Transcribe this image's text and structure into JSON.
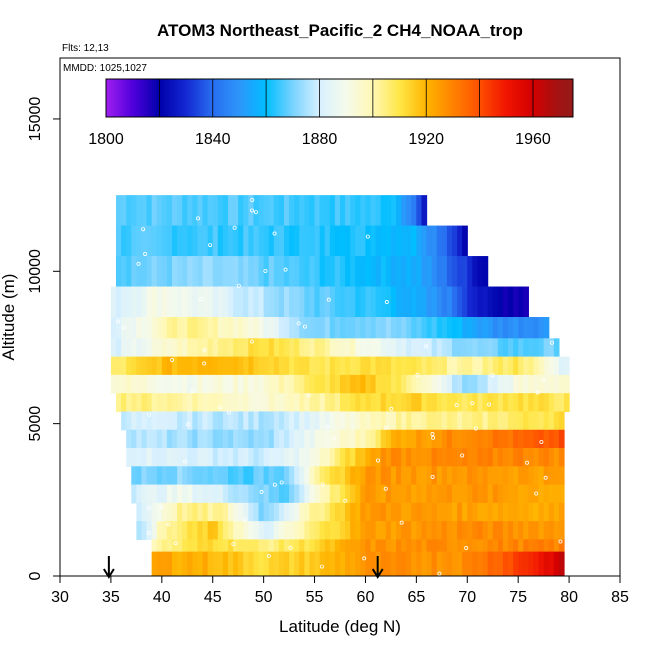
{
  "chart_data": {
    "type": "heatmap",
    "title": "ATOM3 Northeast_Pacific_2 CH4_NOAA_trop",
    "flights_note": "Flts: 12,13",
    "dates_note": "MMDD: 1025,1027",
    "xlabel": "Latitude (deg N)",
    "ylabel": "Altitude (m)",
    "xlim": [
      30,
      85
    ],
    "ylim": [
      0,
      17000
    ],
    "x_ticks": [
      "30",
      "35",
      "40",
      "45",
      "50",
      "55",
      "60",
      "65",
      "70",
      "75",
      "80",
      "85"
    ],
    "y_ticks": [
      "0",
      "5000",
      "10000",
      "15000"
    ],
    "colorbar": {
      "range": [
        1800,
        1975
      ],
      "tick_values": [
        1800,
        1840,
        1880,
        1920,
        1960
      ],
      "tick_labels": [
        "1800",
        "1840",
        "1880",
        "1920",
        "1960"
      ]
    },
    "markers_latitude": [
      34.8,
      61.2
    ],
    "grid": false,
    "legend": "colorbar top-inside",
    "layers": [
      {
        "alt_range": [
          11500,
          12500
        ],
        "lat_range": [
          35.5,
          66
        ],
        "ch4_profile": [
          [
            35.5,
            1868
          ],
          [
            50,
            1866
          ],
          [
            60,
            1864
          ],
          [
            63,
            1862
          ],
          [
            65,
            1840
          ],
          [
            66,
            1818
          ]
        ]
      },
      {
        "alt_range": [
          10500,
          11500
        ],
        "lat_range": [
          35.5,
          70
        ],
        "ch4_profile": [
          [
            35.5,
            1866
          ],
          [
            50,
            1864
          ],
          [
            60,
            1862
          ],
          [
            65,
            1858
          ],
          [
            68,
            1840
          ],
          [
            70,
            1822
          ]
        ]
      },
      {
        "alt_range": [
          9500,
          10500
        ],
        "lat_range": [
          35.5,
          72
        ],
        "ch4_profile": [
          [
            35.5,
            1868
          ],
          [
            45,
            1872
          ],
          [
            55,
            1864
          ],
          [
            65,
            1856
          ],
          [
            69,
            1836
          ],
          [
            72,
            1820
          ]
        ]
      },
      {
        "alt_range": [
          8500,
          9500
        ],
        "lat_range": [
          35,
          76
        ],
        "ch4_profile": [
          [
            35,
            1880
          ],
          [
            40,
            1892
          ],
          [
            45,
            1884
          ],
          [
            55,
            1868
          ],
          [
            62,
            1862
          ],
          [
            68,
            1846
          ],
          [
            72,
            1822
          ],
          [
            76,
            1818
          ]
        ]
      },
      {
        "alt_range": [
          7800,
          8500
        ],
        "lat_range": [
          35,
          78
        ],
        "ch4_profile": [
          [
            35,
            1882
          ],
          [
            42,
            1904
          ],
          [
            48,
            1896
          ],
          [
            55,
            1870
          ],
          [
            62,
            1872
          ],
          [
            68,
            1862
          ],
          [
            73,
            1848
          ],
          [
            78,
            1850
          ]
        ]
      },
      {
        "alt_range": [
          7200,
          7800
        ],
        "lat_range": [
          35,
          79
        ],
        "ch4_profile": [
          [
            35,
            1880
          ],
          [
            43,
            1900
          ],
          [
            50,
            1912
          ],
          [
            55,
            1904
          ],
          [
            60,
            1892
          ],
          [
            65,
            1880
          ],
          [
            70,
            1872
          ],
          [
            75,
            1866
          ],
          [
            79,
            1870
          ]
        ]
      },
      {
        "alt_range": [
          6600,
          7200
        ],
        "lat_range": [
          35,
          80
        ],
        "ch4_profile": [
          [
            35,
            1904
          ],
          [
            40,
            1918
          ],
          [
            45,
            1922
          ],
          [
            50,
            1916
          ],
          [
            55,
            1908
          ],
          [
            60,
            1912
          ],
          [
            65,
            1908
          ],
          [
            70,
            1900
          ],
          [
            75,
            1910
          ],
          [
            80,
            1880
          ]
        ]
      },
      {
        "alt_range": [
          6000,
          6600
        ],
        "lat_range": [
          35,
          80
        ],
        "ch4_profile": [
          [
            35,
            1896
          ],
          [
            42,
            1890
          ],
          [
            50,
            1894
          ],
          [
            55,
            1908
          ],
          [
            60,
            1918
          ],
          [
            65,
            1902
          ],
          [
            70,
            1870
          ],
          [
            75,
            1892
          ],
          [
            80,
            1896
          ]
        ]
      },
      {
        "alt_range": [
          5400,
          6000
        ],
        "lat_range": [
          35.5,
          80
        ],
        "ch4_profile": [
          [
            35.5,
            1906
          ],
          [
            42,
            1902
          ],
          [
            50,
            1894
          ],
          [
            55,
            1900
          ],
          [
            60,
            1912
          ],
          [
            65,
            1914
          ],
          [
            70,
            1908
          ],
          [
            75,
            1912
          ],
          [
            80,
            1908
          ]
        ]
      },
      {
        "alt_range": [
          4800,
          5400
        ],
        "lat_range": [
          36,
          79.5
        ],
        "ch4_profile": [
          [
            36,
            1880
          ],
          [
            42,
            1878
          ],
          [
            50,
            1876
          ],
          [
            55,
            1884
          ],
          [
            60,
            1896
          ],
          [
            65,
            1904
          ],
          [
            70,
            1902
          ],
          [
            75,
            1908
          ],
          [
            79.5,
            1912
          ]
        ]
      },
      {
        "alt_range": [
          4200,
          4800
        ],
        "lat_range": [
          36.5,
          79.5
        ],
        "ch4_profile": [
          [
            36.5,
            1878
          ],
          [
            42,
            1874
          ],
          [
            50,
            1872
          ],
          [
            55,
            1888
          ],
          [
            60,
            1900
          ],
          [
            63,
            1922
          ],
          [
            70,
            1930
          ],
          [
            75,
            1934
          ],
          [
            79.5,
            1940
          ]
        ]
      },
      {
        "alt_range": [
          3600,
          4200
        ],
        "lat_range": [
          36.5,
          79.5
        ],
        "ch4_profile": [
          [
            36.5,
            1884
          ],
          [
            42,
            1882
          ],
          [
            50,
            1878
          ],
          [
            55,
            1890
          ],
          [
            58,
            1910
          ],
          [
            62,
            1928
          ],
          [
            70,
            1928
          ],
          [
            75,
            1930
          ],
          [
            79.5,
            1928
          ]
        ]
      },
      {
        "alt_range": [
          3000,
          3600
        ],
        "lat_range": [
          37,
          79.5
        ],
        "ch4_profile": [
          [
            37,
            1870
          ],
          [
            42,
            1872
          ],
          [
            48,
            1866
          ],
          [
            52,
            1870
          ],
          [
            56,
            1906
          ],
          [
            60,
            1926
          ],
          [
            70,
            1926
          ],
          [
            79.5,
            1924
          ]
        ]
      },
      {
        "alt_range": [
          2400,
          3000
        ],
        "lat_range": [
          37,
          79.5
        ],
        "ch4_profile": [
          [
            37,
            1880
          ],
          [
            42,
            1888
          ],
          [
            48,
            1876
          ],
          [
            52,
            1866
          ],
          [
            56,
            1900
          ],
          [
            60,
            1924
          ],
          [
            70,
            1926
          ],
          [
            79.5,
            1922
          ]
        ]
      },
      {
        "alt_range": [
          1800,
          2400
        ],
        "lat_range": [
          37.5,
          79.5
        ],
        "ch4_profile": [
          [
            37.5,
            1878
          ],
          [
            42,
            1904
          ],
          [
            46,
            1902
          ],
          [
            50,
            1870
          ],
          [
            55,
            1902
          ],
          [
            60,
            1926
          ],
          [
            70,
            1924
          ],
          [
            79.5,
            1922
          ]
        ]
      },
      {
        "alt_range": [
          1200,
          1800
        ],
        "lat_range": [
          37.5,
          79.5
        ],
        "ch4_profile": [
          [
            37.5,
            1870
          ],
          [
            40,
            1900
          ],
          [
            45,
            1916
          ],
          [
            50,
            1880
          ],
          [
            55,
            1906
          ],
          [
            60,
            1924
          ],
          [
            70,
            1928
          ],
          [
            79.5,
            1926
          ]
        ]
      },
      {
        "alt_range": [
          800,
          1200
        ],
        "lat_range": [
          39,
          79.5
        ],
        "ch4_profile": [
          [
            39,
            1900
          ],
          [
            45,
            1914
          ],
          [
            50,
            1904
          ],
          [
            55,
            1912
          ],
          [
            60,
            1926
          ],
          [
            70,
            1928
          ],
          [
            79.5,
            1930
          ]
        ]
      },
      {
        "alt_range": [
          0,
          800
        ],
        "lat_range": [
          39,
          79.5
        ],
        "ch4_profile": [
          [
            39,
            1924
          ],
          [
            45,
            1920
          ],
          [
            50,
            1912
          ],
          [
            55,
            1916
          ],
          [
            60,
            1926
          ],
          [
            70,
            1928
          ],
          [
            77,
            1950
          ],
          [
            79.5,
            1962
          ]
        ]
      }
    ]
  }
}
